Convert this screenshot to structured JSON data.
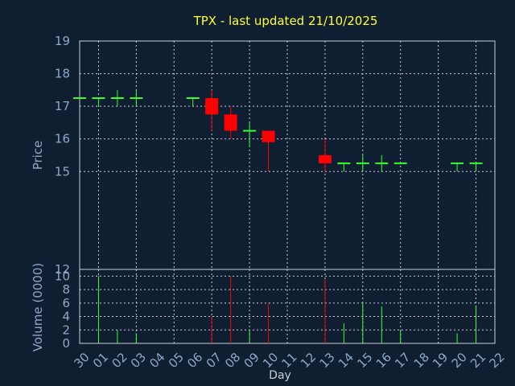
{
  "chart_data": {
    "type": "candlestick",
    "title": "TPX - last updated 21/10/2025",
    "xlabel": "Day",
    "ylabel_price": "Price",
    "ylabel_volume": "Volume (0000)",
    "x_ticks": [
      "30",
      "01",
      "02",
      "03",
      "04",
      "05",
      "06",
      "07",
      "08",
      "09",
      "10",
      "11",
      "12",
      "13",
      "14",
      "15",
      "16",
      "17",
      "18",
      "19",
      "20",
      "21",
      "22"
    ],
    "price_ylim": [
      12,
      19
    ],
    "price_ticks": [
      19,
      18,
      17,
      16,
      15,
      12
    ],
    "volume_ylim": [
      0,
      11
    ],
    "volume_ticks": [
      10,
      8,
      6,
      4,
      2,
      0
    ],
    "grid": true,
    "colors": {
      "up": "#33ff33",
      "down": "#ff0000",
      "background": "#0f1e30",
      "grid": "#c8d0d8",
      "title": "#ffff33",
      "axis_text": "#8fa8c8"
    },
    "candles": [
      {
        "day": "30",
        "open": 17.25,
        "high": 17.25,
        "low": 17.25,
        "close": 17.25,
        "volume": 0
      },
      {
        "day": "01",
        "open": 17.25,
        "high": 17.25,
        "low": 17.0,
        "close": 17.25,
        "volume": 10
      },
      {
        "day": "02",
        "open": 17.25,
        "high": 17.5,
        "low": 17.0,
        "close": 17.25,
        "volume": 2
      },
      {
        "day": "03",
        "open": 17.25,
        "high": 17.5,
        "low": 17.0,
        "close": 17.25,
        "volume": 1.5
      },
      {
        "day": "06",
        "open": 17.25,
        "high": 17.25,
        "low": 17.0,
        "close": 17.25,
        "volume": 0
      },
      {
        "day": "07",
        "open": 17.25,
        "high": 17.5,
        "low": 16.25,
        "close": 16.75,
        "volume": 4
      },
      {
        "day": "08",
        "open": 16.75,
        "high": 17.0,
        "low": 16.0,
        "close": 16.25,
        "volume": 10
      },
      {
        "day": "09",
        "open": 16.25,
        "high": 16.5,
        "low": 15.75,
        "close": 16.25,
        "volume": 2
      },
      {
        "day": "10",
        "open": 16.25,
        "high": 16.25,
        "low": 15.0,
        "close": 15.9,
        "volume": 6
      },
      {
        "day": "13",
        "open": 15.5,
        "high": 16.0,
        "low": 15.0,
        "close": 15.25,
        "volume": 9.5
      },
      {
        "day": "14",
        "open": 15.25,
        "high": 15.25,
        "low": 15.0,
        "close": 15.25,
        "volume": 3
      },
      {
        "day": "15",
        "open": 15.25,
        "high": 15.5,
        "low": 15.0,
        "close": 15.25,
        "volume": 6
      },
      {
        "day": "16",
        "open": 15.25,
        "high": 15.5,
        "low": 15.0,
        "close": 15.25,
        "volume": 5.5
      },
      {
        "day": "17",
        "open": 15.25,
        "high": 15.25,
        "low": 15.25,
        "close": 15.25,
        "volume": 2
      },
      {
        "day": "20",
        "open": 15.25,
        "high": 15.25,
        "low": 15.0,
        "close": 15.25,
        "volume": 1.5
      },
      {
        "day": "21",
        "open": 15.25,
        "high": 15.25,
        "low": 15.0,
        "close": 15.25,
        "volume": 5.5
      }
    ]
  }
}
